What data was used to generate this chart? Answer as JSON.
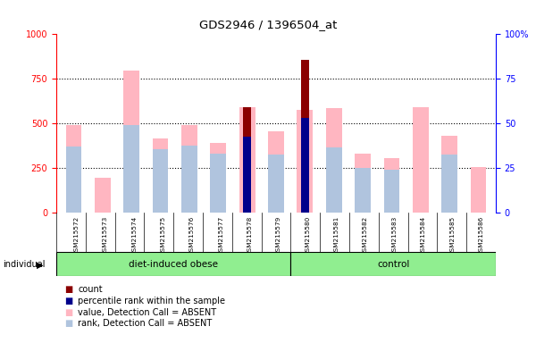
{
  "title": "GDS2946 / 1396504_at",
  "samples": [
    "GSM215572",
    "GSM215573",
    "GSM215574",
    "GSM215575",
    "GSM215576",
    "GSM215577",
    "GSM215578",
    "GSM215579",
    "GSM215580",
    "GSM215581",
    "GSM215582",
    "GSM215583",
    "GSM215584",
    "GSM215585",
    "GSM215586"
  ],
  "value_absent": [
    490,
    195,
    795,
    415,
    490,
    390,
    590,
    455,
    575,
    585,
    330,
    305,
    590,
    430,
    255
  ],
  "rank_absent": [
    370,
    0,
    490,
    355,
    375,
    330,
    0,
    325,
    0,
    365,
    250,
    240,
    0,
    325,
    0
  ],
  "count": [
    0,
    0,
    0,
    0,
    0,
    0,
    590,
    0,
    855,
    0,
    0,
    0,
    0,
    0,
    0
  ],
  "percentile_rank": [
    0,
    0,
    0,
    0,
    0,
    0,
    425,
    0,
    530,
    0,
    0,
    0,
    0,
    0,
    0
  ],
  "ylim_left": [
    0,
    1000
  ],
  "ylim_right": [
    0,
    100
  ],
  "yticks_left": [
    0,
    250,
    500,
    750,
    1000
  ],
  "yticks_right": [
    0,
    25,
    50,
    75,
    100
  ],
  "color_count": "#8B0000",
  "color_percentile": "#00008B",
  "color_value_absent": "#FFB6C1",
  "color_rank_absent": "#B0C4DE",
  "group_color": "#90EE90",
  "bg_color": "#D3D3D3",
  "plot_bg": "#FFFFFF",
  "dio_label": "diet-induced obese",
  "ctrl_label": "control",
  "individual_label": "individual",
  "legend_items": [
    [
      "#8B0000",
      "count"
    ],
    [
      "#00008B",
      "percentile rank within the sample"
    ],
    [
      "#FFB6C1",
      "value, Detection Call = ABSENT"
    ],
    [
      "#B0C4DE",
      "rank, Detection Call = ABSENT"
    ]
  ]
}
